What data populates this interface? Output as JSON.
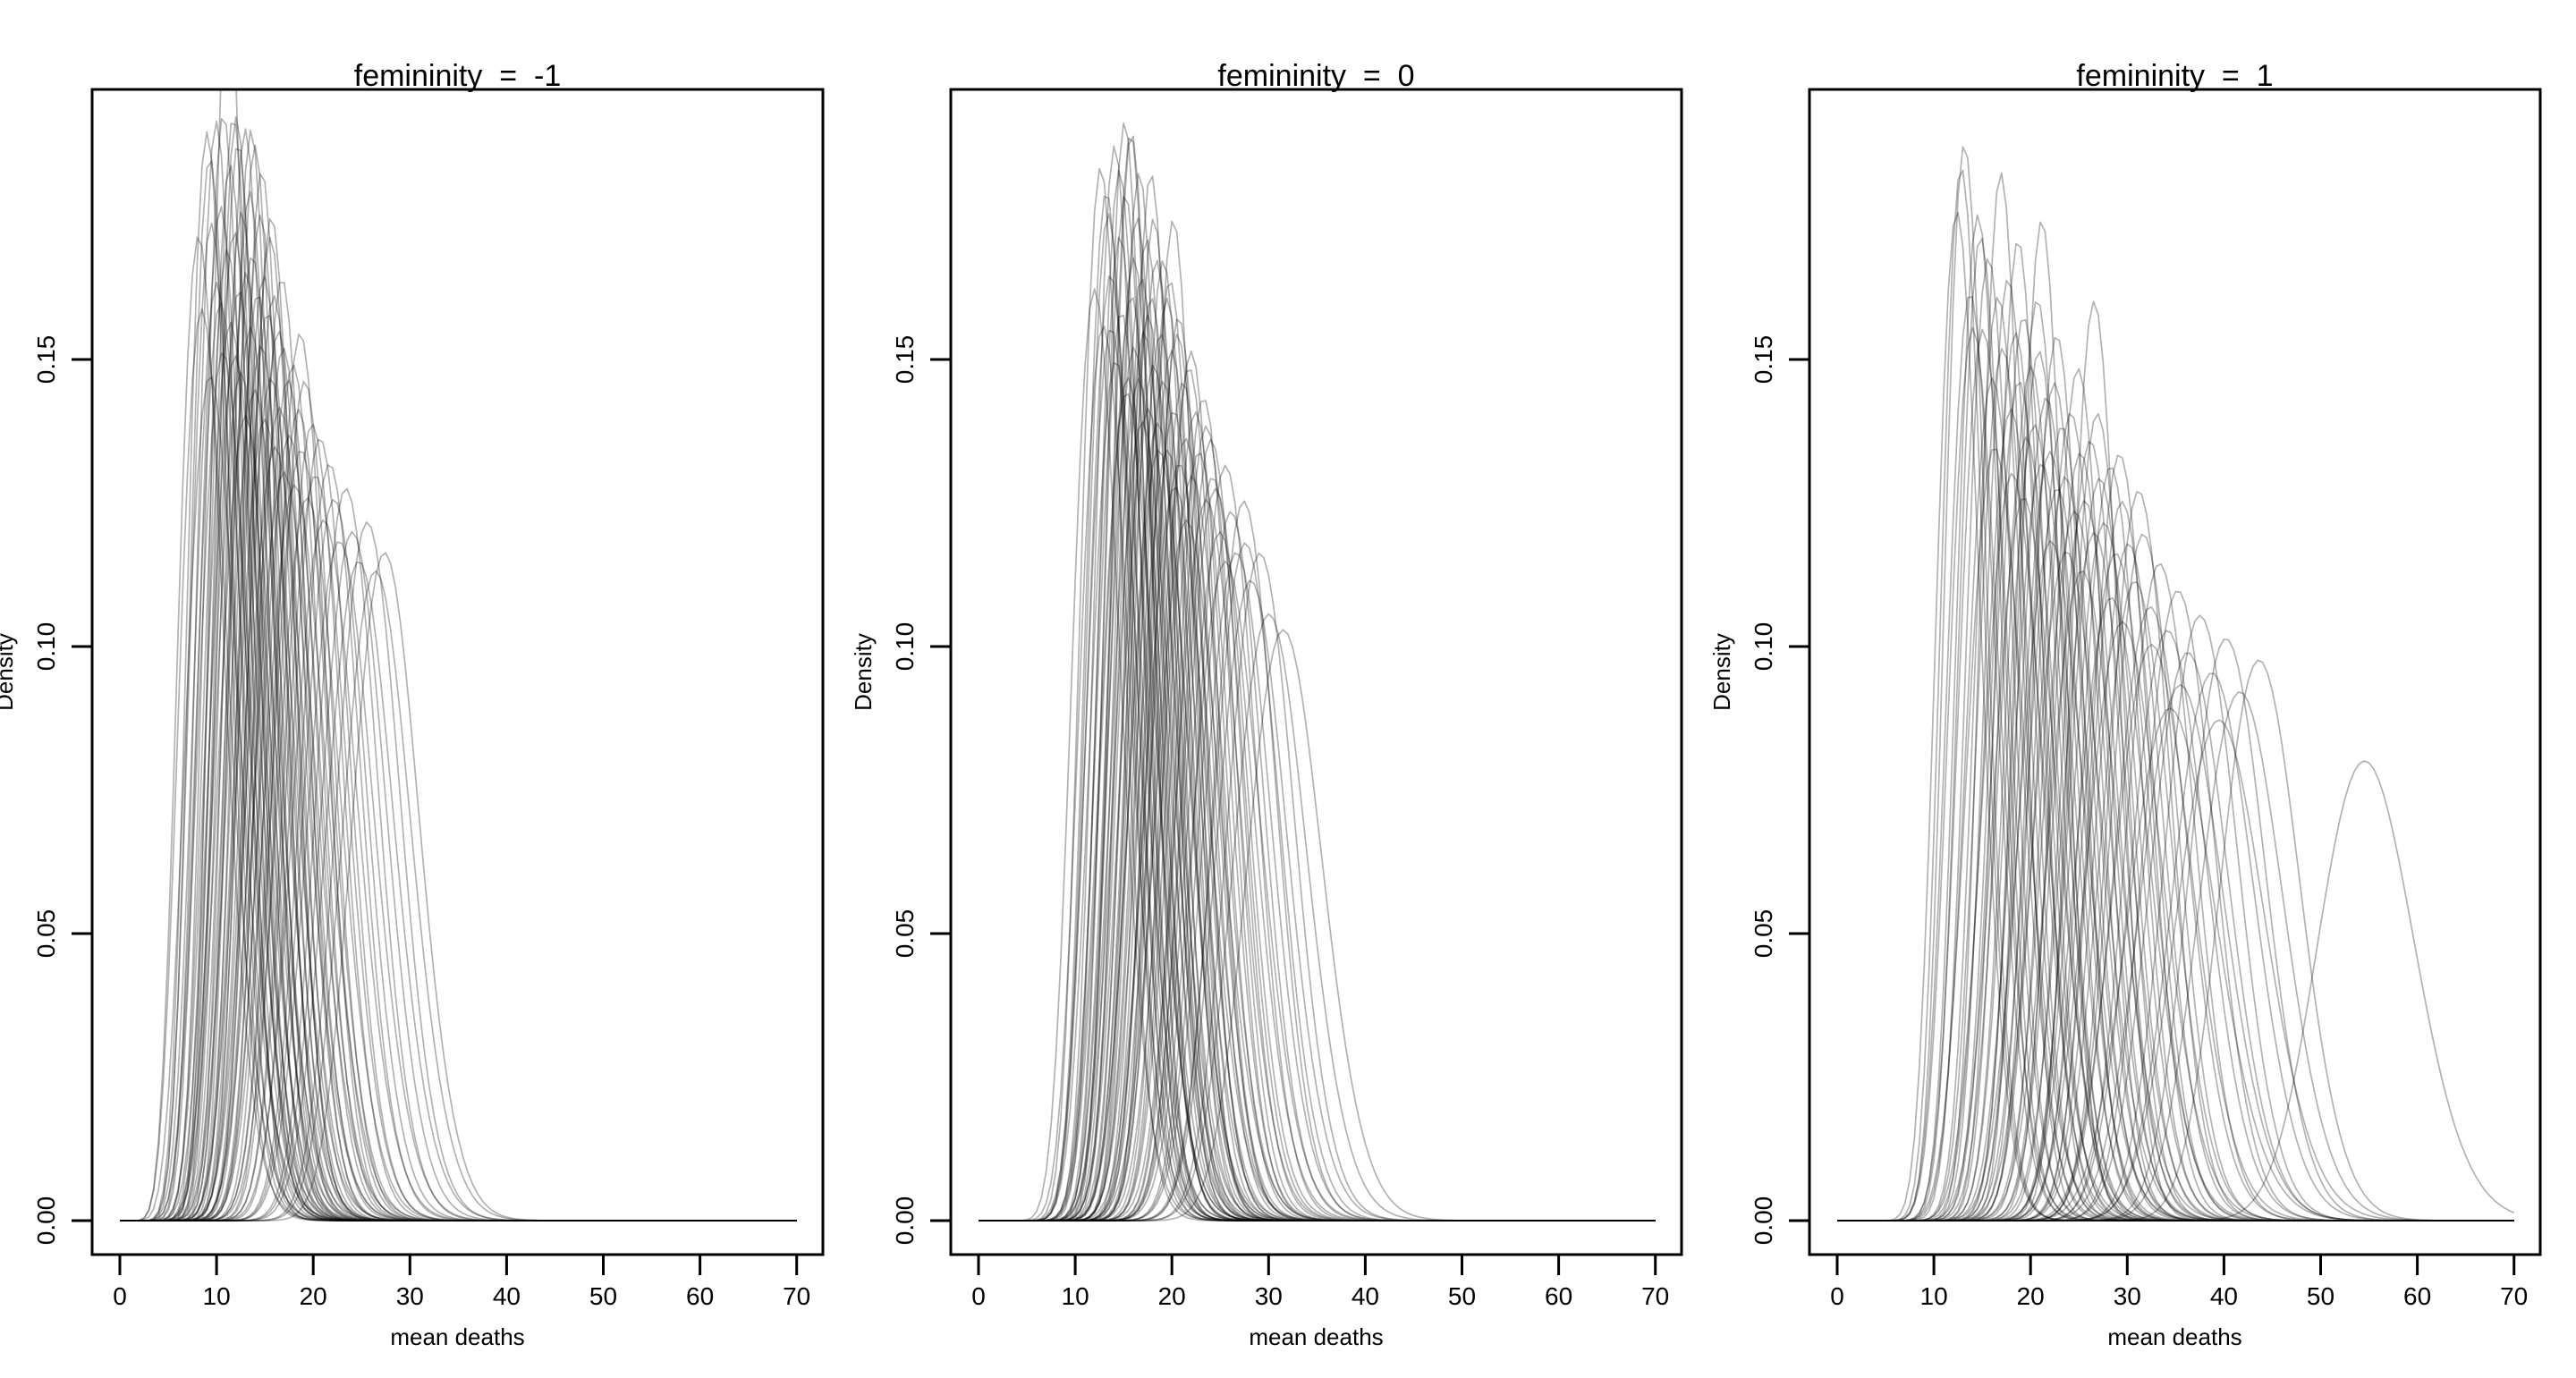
{
  "figure": {
    "background": "#ffffff",
    "axis_color": "#000000",
    "text_color": "#000000"
  },
  "chart_data": {
    "type": "line",
    "subtype": "overlaid-density-curves",
    "title": "",
    "description": "Three-panel R base-graphics figure of posterior density curves of mean deaths at femininity = -1, 0, 1. Each curve is a gamma density described by [mean, sd].",
    "x_axis": {
      "label": "mean deaths",
      "range": [
        0,
        70
      ],
      "tick_values": [
        0,
        10,
        20,
        30,
        40,
        50,
        60,
        70
      ],
      "tick_labels": [
        "0",
        "10",
        "20",
        "30",
        "40",
        "50",
        "60",
        "70"
      ]
    },
    "y_axis": {
      "label": "Density",
      "range": [
        0,
        0.195
      ],
      "tick_values": [
        0,
        0.05,
        0.1,
        0.15
      ],
      "tick_labels": [
        "0.00",
        "0.05",
        "0.10",
        "0.15"
      ]
    },
    "style": {
      "curve_color": "#000000",
      "curve_opacity": 0.3,
      "curve_width": 1.7,
      "axis_width": 3,
      "grid": false,
      "legend": false
    },
    "panels": [
      {
        "title": "femininity  =  -1",
        "xlabel": "mean deaths",
        "ylabel": "Density",
        "curves": [
          [
            9.2,
            2.6
          ],
          [
            9.8,
            2.2
          ],
          [
            10.1,
            2.8
          ],
          [
            10.4,
            2.12
          ],
          [
            10.6,
            2.5
          ],
          [
            10.9,
            2.3
          ],
          [
            11.1,
            2.1
          ],
          [
            11.3,
            2.7
          ],
          [
            11.5,
            1.85
          ],
          [
            11.6,
            2.4
          ],
          [
            11.8,
            2.2
          ],
          [
            12.0,
            2.6
          ],
          [
            12.1,
            2.1
          ],
          [
            12.3,
            2.35
          ],
          [
            12.5,
            2.7
          ],
          [
            12.6,
            2.15
          ],
          [
            12.8,
            2.5
          ],
          [
            13.0,
            2.3
          ],
          [
            13.1,
            2.75
          ],
          [
            13.3,
            2.12
          ],
          [
            13.5,
            2.45
          ],
          [
            13.6,
            2.9
          ],
          [
            13.8,
            2.25
          ],
          [
            14.0,
            2.6
          ],
          [
            14.1,
            2.4
          ],
          [
            14.3,
            2.15
          ],
          [
            14.5,
            2.8
          ],
          [
            14.7,
            2.5
          ],
          [
            14.9,
            2.3
          ],
          [
            15.1,
            2.65
          ],
          [
            15.3,
            2.45
          ],
          [
            15.5,
            2.9
          ],
          [
            15.7,
            2.55
          ],
          [
            15.9,
            2.35
          ],
          [
            16.1,
            2.75
          ],
          [
            16.3,
            2.5
          ],
          [
            16.6,
            3.0
          ],
          [
            16.8,
            2.6
          ],
          [
            17.0,
            2.85
          ],
          [
            17.3,
            2.65
          ],
          [
            17.5,
            3.1
          ],
          [
            17.8,
            2.75
          ],
          [
            18.0,
            2.95
          ],
          [
            18.3,
            2.7
          ],
          [
            18.6,
            3.15
          ],
          [
            18.9,
            2.85
          ],
          [
            19.2,
            3.0
          ],
          [
            19.5,
            2.75
          ],
          [
            19.9,
            3.2
          ],
          [
            20.3,
            2.9
          ],
          [
            20.7,
            3.1
          ],
          [
            21.1,
            2.95
          ],
          [
            21.6,
            3.3
          ],
          [
            22.1,
            3.05
          ],
          [
            22.6,
            3.2
          ],
          [
            23.2,
            3.4
          ],
          [
            23.8,
            3.15
          ],
          [
            24.5,
            3.35
          ],
          [
            25.2,
            3.5
          ],
          [
            26.0,
            3.3
          ],
          [
            26.9,
            3.55
          ],
          [
            27.8,
            3.45
          ],
          [
            8.8,
            2.4
          ],
          [
            9.5,
            2.15
          ],
          [
            10.0,
            2.35
          ],
          [
            11.0,
            2.55
          ],
          [
            12.4,
            2.1
          ],
          [
            13.9,
            2.12
          ],
          [
            15.0,
            2.2
          ],
          [
            16.0,
            2.3
          ],
          [
            17.1,
            2.45
          ],
          [
            19.0,
            2.6
          ]
        ]
      },
      {
        "title": "femininity  =  0",
        "xlabel": "mean deaths",
        "ylabel": "Density",
        "curves": [
          [
            12.5,
            2.5
          ],
          [
            13.0,
            2.2
          ],
          [
            13.4,
            2.6
          ],
          [
            13.8,
            2.3
          ],
          [
            14.1,
            2.45
          ],
          [
            14.4,
            2.15
          ],
          [
            14.7,
            2.7
          ],
          [
            15.0,
            2.35
          ],
          [
            15.2,
            2.55
          ],
          [
            15.5,
            2.25
          ],
          [
            15.8,
            2.8
          ],
          [
            16.0,
            2.12
          ],
          [
            16.2,
            2.5
          ],
          [
            16.5,
            2.65
          ],
          [
            16.7,
            2.3
          ],
          [
            17.0,
            2.75
          ],
          [
            17.2,
            2.45
          ],
          [
            17.5,
            2.6
          ],
          [
            17.7,
            2.35
          ],
          [
            18.0,
            2.85
          ],
          [
            18.2,
            2.5
          ],
          [
            18.5,
            2.7
          ],
          [
            18.7,
            2.4
          ],
          [
            19.0,
            2.9
          ],
          [
            19.2,
            2.6
          ],
          [
            19.5,
            2.75
          ],
          [
            19.8,
            2.5
          ],
          [
            20.0,
            3.0
          ],
          [
            20.3,
            2.65
          ],
          [
            20.6,
            2.85
          ],
          [
            20.9,
            2.6
          ],
          [
            21.2,
            3.05
          ],
          [
            21.5,
            2.75
          ],
          [
            21.8,
            2.95
          ],
          [
            22.1,
            2.7
          ],
          [
            22.5,
            3.1
          ],
          [
            22.8,
            2.85
          ],
          [
            23.2,
            3.0
          ],
          [
            23.6,
            2.8
          ],
          [
            24.0,
            3.2
          ],
          [
            24.4,
            2.95
          ],
          [
            24.9,
            3.15
          ],
          [
            25.4,
            3.35
          ],
          [
            25.9,
            3.05
          ],
          [
            26.5,
            3.25
          ],
          [
            27.1,
            3.45
          ],
          [
            27.8,
            3.2
          ],
          [
            28.6,
            3.6
          ],
          [
            29.5,
            3.45
          ],
          [
            30.5,
            3.8
          ],
          [
            32.0,
            3.9
          ],
          [
            13.6,
            2.25
          ],
          [
            14.9,
            2.2
          ],
          [
            16.4,
            2.4
          ],
          [
            17.9,
            2.55
          ],
          [
            19.4,
            2.4
          ],
          [
            21.0,
            2.55
          ],
          [
            22.3,
            2.65
          ],
          [
            23.9,
            2.9
          ],
          [
            15.4,
            2.1
          ],
          [
            16.9,
            2.2
          ],
          [
            18.4,
            2.3
          ],
          [
            20.1,
            2.45
          ],
          [
            26.0,
            3.5
          ],
          [
            28.0,
            3.4
          ],
          [
            14.2,
            2.6
          ],
          [
            15.9,
            2.75
          ],
          [
            17.4,
            2.9
          ],
          [
            19.1,
            3.0
          ],
          [
            20.8,
            3.15
          ],
          [
            22.0,
            3.3
          ],
          [
            24.6,
            3.1
          ],
          [
            16.1,
            2.12
          ],
          [
            18.1,
            2.2
          ],
          [
            20.4,
            2.3
          ]
        ]
      },
      {
        "title": "femininity  =  1",
        "xlabel": "mean deaths",
        "ylabel": "Density",
        "curves": [
          [
            12.8,
            2.3
          ],
          [
            13.5,
            2.15
          ],
          [
            14.2,
            2.5
          ],
          [
            14.9,
            2.3
          ],
          [
            15.5,
            2.6
          ],
          [
            16.0,
            2.4
          ],
          [
            16.5,
            2.75
          ],
          [
            17.0,
            2.5
          ],
          [
            17.5,
            2.65
          ],
          [
            18.0,
            2.45
          ],
          [
            18.4,
            2.85
          ],
          [
            18.8,
            2.6
          ],
          [
            19.2,
            2.75
          ],
          [
            19.6,
            2.55
          ],
          [
            20.0,
            2.95
          ],
          [
            20.4,
            2.7
          ],
          [
            20.8,
            2.9
          ],
          [
            21.2,
            2.65
          ],
          [
            21.6,
            3.05
          ],
          [
            22.0,
            2.8
          ],
          [
            22.4,
            3.0
          ],
          [
            22.8,
            2.75
          ],
          [
            23.2,
            3.15
          ],
          [
            23.6,
            2.9
          ],
          [
            24.0,
            3.1
          ],
          [
            24.5,
            2.85
          ],
          [
            25.0,
            3.25
          ],
          [
            25.5,
            3.0
          ],
          [
            26.0,
            3.2
          ],
          [
            26.5,
            2.95
          ],
          [
            27.0,
            3.35
          ],
          [
            27.5,
            3.1
          ],
          [
            28.0,
            3.3
          ],
          [
            28.6,
            3.05
          ],
          [
            29.2,
            3.45
          ],
          [
            29.8,
            3.2
          ],
          [
            30.5,
            3.4
          ],
          [
            31.2,
            3.6
          ],
          [
            32.0,
            3.35
          ],
          [
            32.8,
            3.75
          ],
          [
            33.7,
            3.5
          ],
          [
            34.6,
            3.9
          ],
          [
            35.6,
            3.65
          ],
          [
            36.7,
            4.05
          ],
          [
            37.9,
            3.8
          ],
          [
            39.2,
            4.2
          ],
          [
            40.6,
            3.95
          ],
          [
            42.1,
            4.35
          ],
          [
            44.0,
            4.1
          ],
          [
            55.0,
            5.0
          ],
          [
            13.2,
            2.2
          ],
          [
            15.2,
            2.35
          ],
          [
            17.2,
            2.2
          ],
          [
            19.0,
            2.35
          ],
          [
            21.0,
            2.5
          ],
          [
            23.0,
            2.6
          ],
          [
            25.2,
            2.7
          ],
          [
            27.2,
            2.85
          ],
          [
            29.5,
            3.0
          ],
          [
            31.5,
            3.15
          ],
          [
            16.8,
            3.0
          ],
          [
            19.8,
            3.2
          ],
          [
            22.6,
            3.4
          ],
          [
            25.8,
            3.55
          ],
          [
            28.8,
            3.7
          ],
          [
            33.0,
            4.0
          ],
          [
            36.0,
            4.3
          ],
          [
            14.5,
            2.6
          ],
          [
            18.6,
            3.1
          ],
          [
            24.2,
            3.45
          ],
          [
            30.0,
            3.85
          ],
          [
            35.0,
            4.5
          ],
          [
            40.0,
            4.6
          ],
          [
            21.4,
            2.3
          ],
          [
            26.8,
            2.5
          ]
        ]
      }
    ]
  }
}
